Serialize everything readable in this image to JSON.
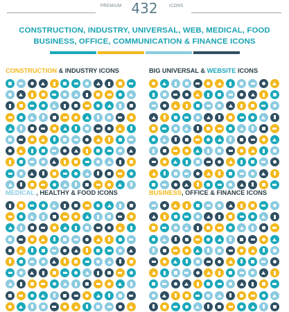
{
  "header": {
    "premium_label": "PREMIUM",
    "count": "432",
    "icons_label": "ICONS",
    "line1": "CONSTRUCTION, INDUSTRY, UNIVERSAL, WEB, MEDICAL, FOOD",
    "line2": "BUSINESS, OFFICE, COMMUNICATION & FINANCE ICONS"
  },
  "color_bar": [
    "#1ba8ba",
    "#f3b81e",
    "#8bcbe0",
    "#2f4f61"
  ],
  "colors": {
    "teal": "#1ba8ba",
    "yellow": "#f3b81e",
    "navy": "#2f4f61",
    "lightblue": "#8bcbe0",
    "text_dark": "#2a3e48"
  },
  "sections": [
    {
      "highlight": "CONSTRUCTION",
      "rest": " & INDUSTRY ICONS",
      "highlight_color": "#f3b81e"
    },
    {
      "highlight": "BIG UNIVERSAL  & ",
      "rest": "WEBSITE ICONS",
      "highlight_color": "#2a3e48",
      "rest_color": "#1ba8ba",
      "last": " ICONS"
    },
    {
      "highlight": "MEDICAL",
      "rest": " , HEALTHY & FOOD ICONS",
      "highlight_color": "#8bcbe0"
    },
    {
      "highlight": "BUSINESS",
      "rest": ", OFFICE & FINANCE ICONS",
      "highlight_color": "#f3b81e"
    }
  ]
}
